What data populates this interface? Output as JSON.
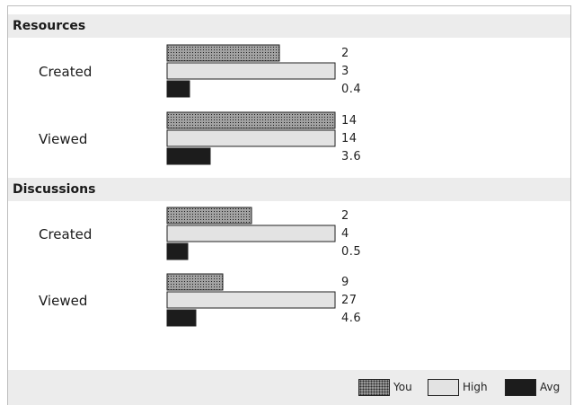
{
  "chart_data": {
    "type": "bar",
    "orientation": "horizontal",
    "grid": false,
    "legend_position": "bottom-right",
    "series_colors": {
      "You": "#9a9a9a",
      "High": "#e3e3e3",
      "Avg": "#1c1c1c"
    },
    "groups": [
      {
        "title": "Resources",
        "rows": [
          {
            "label": "Created",
            "you": 2,
            "high": 3,
            "avg": 0.4,
            "labels": [
              "2",
              "3",
              "0.4"
            ]
          },
          {
            "label": "Viewed",
            "you": 14,
            "high": 14,
            "avg": 3.6,
            "labels": [
              "14",
              "14",
              "3.6"
            ]
          }
        ]
      },
      {
        "title": "Discussions",
        "rows": [
          {
            "label": "Created",
            "you": 2,
            "high": 4,
            "avg": 0.5,
            "labels": [
              "2",
              "4",
              "0.5"
            ]
          },
          {
            "label": "Viewed",
            "you": 9,
            "high": 27,
            "avg": 4.6,
            "labels": [
              "9",
              "27",
              "4.6"
            ]
          }
        ]
      }
    ],
    "legend": [
      "You",
      "High",
      "Avg"
    ]
  }
}
